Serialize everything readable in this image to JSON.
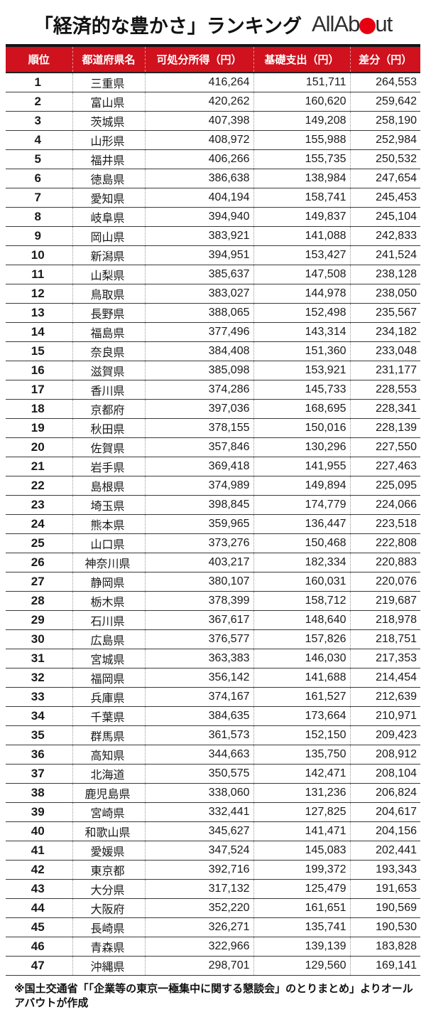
{
  "title": "「経済的な豊かさ」ランキング",
  "logo": {
    "text_before": "AllAb",
    "text_after": "ut"
  },
  "colors": {
    "header_background": "#cf121e",
    "logo_dot": "#e60012",
    "row_border": "#3a3a3a"
  },
  "chart_data": {
    "type": "table",
    "title": "「経済的な豊かさ」ランキング",
    "columns": [
      "順位",
      "都道府県名",
      "可処分所得（円）",
      "基礎支出（円）",
      "差分（円）"
    ],
    "rows": [
      [
        "1",
        "三重県",
        "416,264",
        "151,711",
        "264,553"
      ],
      [
        "2",
        "富山県",
        "420,262",
        "160,620",
        "259,642"
      ],
      [
        "3",
        "茨城県",
        "407,398",
        "149,208",
        "258,190"
      ],
      [
        "4",
        "山形県",
        "408,972",
        "155,988",
        "252,984"
      ],
      [
        "5",
        "福井県",
        "406,266",
        "155,735",
        "250,532"
      ],
      [
        "6",
        "徳島県",
        "386,638",
        "138,984",
        "247,654"
      ],
      [
        "7",
        "愛知県",
        "404,194",
        "158,741",
        "245,453"
      ],
      [
        "8",
        "岐阜県",
        "394,940",
        "149,837",
        "245,104"
      ],
      [
        "9",
        "岡山県",
        "383,921",
        "141,088",
        "242,833"
      ],
      [
        "10",
        "新潟県",
        "394,951",
        "153,427",
        "241,524"
      ],
      [
        "11",
        "山梨県",
        "385,637",
        "147,508",
        "238,128"
      ],
      [
        "12",
        "鳥取県",
        "383,027",
        "144,978",
        "238,050"
      ],
      [
        "13",
        "長野県",
        "388,065",
        "152,498",
        "235,567"
      ],
      [
        "14",
        "福島県",
        "377,496",
        "143,314",
        "234,182"
      ],
      [
        "15",
        "奈良県",
        "384,408",
        "151,360",
        "233,048"
      ],
      [
        "16",
        "滋賀県",
        "385,098",
        "153,921",
        "231,177"
      ],
      [
        "17",
        "香川県",
        "374,286",
        "145,733",
        "228,553"
      ],
      [
        "18",
        "京都府",
        "397,036",
        "168,695",
        "228,341"
      ],
      [
        "19",
        "秋田県",
        "378,155",
        "150,016",
        "228,139"
      ],
      [
        "20",
        "佐賀県",
        "357,846",
        "130,296",
        "227,550"
      ],
      [
        "21",
        "岩手県",
        "369,418",
        "141,955",
        "227,463"
      ],
      [
        "22",
        "島根県",
        "374,989",
        "149,894",
        "225,095"
      ],
      [
        "23",
        "埼玉県",
        "398,845",
        "174,779",
        "224,066"
      ],
      [
        "24",
        "熊本県",
        "359,965",
        "136,447",
        "223,518"
      ],
      [
        "25",
        "山口県",
        "373,276",
        "150,468",
        "222,808"
      ],
      [
        "26",
        "神奈川県",
        "403,217",
        "182,334",
        "220,883"
      ],
      [
        "27",
        "静岡県",
        "380,107",
        "160,031",
        "220,076"
      ],
      [
        "28",
        "栃木県",
        "378,399",
        "158,712",
        "219,687"
      ],
      [
        "29",
        "石川県",
        "367,617",
        "148,640",
        "218,978"
      ],
      [
        "30",
        "広島県",
        "376,577",
        "157,826",
        "218,751"
      ],
      [
        "31",
        "宮城県",
        "363,383",
        "146,030",
        "217,353"
      ],
      [
        "32",
        "福岡県",
        "356,142",
        "141,688",
        "214,454"
      ],
      [
        "33",
        "兵庫県",
        "374,167",
        "161,527",
        "212,639"
      ],
      [
        "34",
        "千葉県",
        "384,635",
        "173,664",
        "210,971"
      ],
      [
        "35",
        "群馬県",
        "361,573",
        "152,150",
        "209,423"
      ],
      [
        "36",
        "高知県",
        "344,663",
        "135,750",
        "208,912"
      ],
      [
        "37",
        "北海道",
        "350,575",
        "142,471",
        "208,104"
      ],
      [
        "38",
        "鹿児島県",
        "338,060",
        "131,236",
        "206,824"
      ],
      [
        "39",
        "宮崎県",
        "332,441",
        "127,825",
        "204,617"
      ],
      [
        "40",
        "和歌山県",
        "345,627",
        "141,471",
        "204,156"
      ],
      [
        "41",
        "愛媛県",
        "347,524",
        "145,083",
        "202,441"
      ],
      [
        "42",
        "東京都",
        "392,716",
        "199,372",
        "193,343"
      ],
      [
        "43",
        "大分県",
        "317,132",
        "125,479",
        "191,653"
      ],
      [
        "44",
        "大阪府",
        "352,220",
        "161,651",
        "190,569"
      ],
      [
        "45",
        "長崎県",
        "326,271",
        "135,741",
        "190,530"
      ],
      [
        "46",
        "青森県",
        "322,966",
        "139,139",
        "183,828"
      ],
      [
        "47",
        "沖縄県",
        "298,701",
        "129,560",
        "169,141"
      ]
    ]
  },
  "footnote": "※国土交通省「「企業等の東京一極集中に関する懇談会」のとりまとめ」よりオールアバウトが作成"
}
